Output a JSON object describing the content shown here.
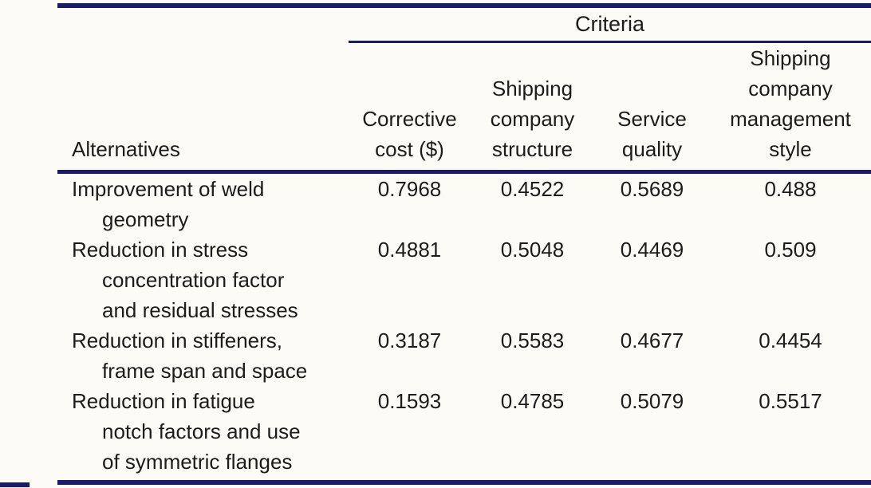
{
  "page": {
    "background_color": "#fdfbf5",
    "rule_color": "#1b1b6b",
    "text_color": "#1c1c1c"
  },
  "table": {
    "criteria_group_label": "Criteria",
    "alternatives_header": "Alternatives",
    "criteria_columns": [
      {
        "label": "Corrective\ncost ($)"
      },
      {
        "label": "Shipping\ncompany\nstructure"
      },
      {
        "label": "Service\nquality"
      },
      {
        "label": "Shipping\ncompany\nmanagement\nstyle"
      }
    ],
    "rows": [
      {
        "label": "Improvement of weld\ngeometry",
        "values": [
          "0.7968",
          "0.4522",
          "0.5689",
          "0.488"
        ]
      },
      {
        "label": "Reduction in stress\nconcentration factor\nand residual stresses",
        "values": [
          "0.4881",
          "0.5048",
          "0.4469",
          "0.509"
        ]
      },
      {
        "label": "Reduction in stiffeners,\nframe span and space",
        "values": [
          "0.3187",
          "0.5583",
          "0.4677",
          "0.4454"
        ]
      },
      {
        "label": "Reduction in fatigue\nnotch factors and use\nof symmetric flanges",
        "values": [
          "0.1593",
          "0.4785",
          "0.5079",
          "0.5517"
        ]
      }
    ]
  },
  "chart_data": {
    "type": "table",
    "title": "Criteria",
    "columns": [
      "Alternatives",
      "Corrective cost ($)",
      "Shipping company structure",
      "Service quality",
      "Shipping company management style"
    ],
    "rows": [
      [
        "Improvement of weld geometry",
        0.7968,
        0.4522,
        0.5689,
        0.488
      ],
      [
        "Reduction in stress concentration factor and residual stresses",
        0.4881,
        0.5048,
        0.4469,
        0.509
      ],
      [
        "Reduction in stiffeners, frame span and space",
        0.3187,
        0.5583,
        0.4677,
        0.4454
      ],
      [
        "Reduction in fatigue notch factors and use of symmetric flanges",
        0.1593,
        0.4785,
        0.5079,
        0.5517
      ]
    ]
  }
}
